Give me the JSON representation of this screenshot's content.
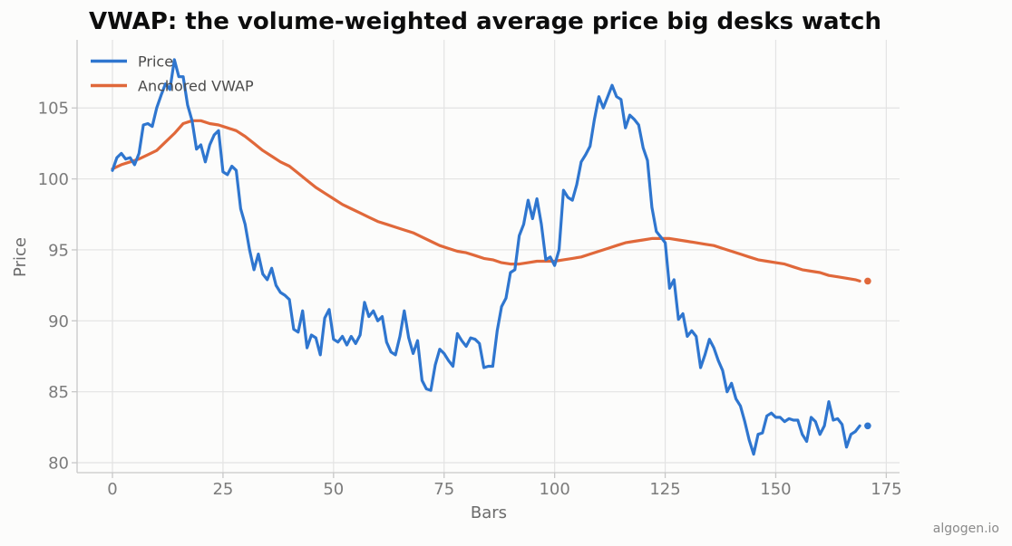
{
  "chart_data": {
    "type": "line",
    "title": "VWAP: the volume-weighted average price big desks watch",
    "xlabel": "Bars",
    "ylabel": "Price",
    "xlim": [
      -8,
      178
    ],
    "ylim": [
      79.3,
      109.8
    ],
    "xticks": [
      0,
      25,
      50,
      75,
      100,
      125,
      150,
      175
    ],
    "yticks": [
      80,
      85,
      90,
      95,
      100,
      105
    ],
    "grid": true,
    "legend_position": "top-left",
    "watermark": "algogen.io",
    "series": [
      {
        "name": "Price",
        "color": "#2f76cf",
        "end_marker": true,
        "points": [
          [
            0,
            100.6
          ],
          [
            1,
            101.5
          ],
          [
            2,
            101.8
          ],
          [
            3,
            101.4
          ],
          [
            4,
            101.5
          ],
          [
            5,
            101.0
          ],
          [
            6,
            101.8
          ],
          [
            7,
            103.8
          ],
          [
            8,
            103.9
          ],
          [
            9,
            103.7
          ],
          [
            10,
            105.0
          ],
          [
            11,
            105.9
          ],
          [
            12,
            106.7
          ],
          [
            13,
            106.3
          ],
          [
            14,
            108.4
          ],
          [
            15,
            107.2
          ],
          [
            16,
            107.2
          ],
          [
            17,
            105.2
          ],
          [
            18,
            104.1
          ],
          [
            19,
            102.1
          ],
          [
            20,
            102.4
          ],
          [
            21,
            101.2
          ],
          [
            22,
            102.4
          ],
          [
            23,
            103.1
          ],
          [
            24,
            103.4
          ],
          [
            25,
            100.5
          ],
          [
            26,
            100.3
          ],
          [
            27,
            100.9
          ],
          [
            28,
            100.6
          ],
          [
            29,
            97.9
          ],
          [
            30,
            96.8
          ],
          [
            31,
            95.0
          ],
          [
            32,
            93.6
          ],
          [
            33,
            94.7
          ],
          [
            34,
            93.3
          ],
          [
            35,
            92.9
          ],
          [
            36,
            93.7
          ],
          [
            37,
            92.5
          ],
          [
            38,
            92.0
          ],
          [
            39,
            91.8
          ],
          [
            40,
            91.5
          ],
          [
            41,
            89.4
          ],
          [
            42,
            89.2
          ],
          [
            43,
            90.7
          ],
          [
            44,
            88.1
          ],
          [
            45,
            89.0
          ],
          [
            46,
            88.8
          ],
          [
            47,
            87.6
          ],
          [
            48,
            90.2
          ],
          [
            49,
            90.8
          ],
          [
            50,
            88.7
          ],
          [
            51,
            88.5
          ],
          [
            52,
            88.9
          ],
          [
            53,
            88.3
          ],
          [
            54,
            88.9
          ],
          [
            55,
            88.4
          ],
          [
            56,
            89.0
          ],
          [
            57,
            91.3
          ],
          [
            58,
            90.3
          ],
          [
            59,
            90.7
          ],
          [
            60,
            90.0
          ],
          [
            61,
            90.3
          ],
          [
            62,
            88.5
          ],
          [
            63,
            87.8
          ],
          [
            64,
            87.6
          ],
          [
            65,
            88.9
          ],
          [
            66,
            90.7
          ],
          [
            67,
            88.8
          ],
          [
            68,
            87.7
          ],
          [
            69,
            88.6
          ],
          [
            70,
            85.8
          ],
          [
            71,
            85.2
          ],
          [
            72,
            85.1
          ],
          [
            73,
            86.9
          ],
          [
            74,
            88.0
          ],
          [
            75,
            87.7
          ],
          [
            76,
            87.2
          ],
          [
            77,
            86.8
          ],
          [
            78,
            89.1
          ],
          [
            79,
            88.6
          ],
          [
            80,
            88.2
          ],
          [
            81,
            88.8
          ],
          [
            82,
            88.7
          ],
          [
            83,
            88.4
          ],
          [
            84,
            86.7
          ],
          [
            85,
            86.8
          ],
          [
            86,
            86.8
          ],
          [
            87,
            89.3
          ],
          [
            88,
            91.0
          ],
          [
            89,
            91.6
          ],
          [
            90,
            93.4
          ],
          [
            91,
            93.6
          ],
          [
            92,
            96.0
          ],
          [
            93,
            96.8
          ],
          [
            94,
            98.5
          ],
          [
            95,
            97.2
          ],
          [
            96,
            98.6
          ],
          [
            97,
            96.8
          ],
          [
            98,
            94.3
          ],
          [
            99,
            94.5
          ],
          [
            100,
            93.9
          ],
          [
            101,
            95.0
          ],
          [
            102,
            99.2
          ],
          [
            103,
            98.7
          ],
          [
            104,
            98.5
          ],
          [
            105,
            99.6
          ],
          [
            106,
            101.2
          ],
          [
            107,
            101.7
          ],
          [
            108,
            102.3
          ],
          [
            109,
            104.2
          ],
          [
            110,
            105.8
          ],
          [
            111,
            105.0
          ],
          [
            112,
            105.8
          ],
          [
            113,
            106.6
          ],
          [
            114,
            105.8
          ],
          [
            115,
            105.6
          ],
          [
            116,
            103.6
          ],
          [
            117,
            104.5
          ],
          [
            118,
            104.2
          ],
          [
            119,
            103.8
          ],
          [
            120,
            102.2
          ],
          [
            121,
            101.3
          ],
          [
            122,
            98.0
          ],
          [
            123,
            96.3
          ],
          [
            124,
            95.9
          ],
          [
            125,
            95.5
          ],
          [
            126,
            92.3
          ],
          [
            127,
            92.9
          ],
          [
            128,
            90.1
          ],
          [
            129,
            90.5
          ],
          [
            130,
            88.9
          ],
          [
            131,
            89.3
          ],
          [
            132,
            88.9
          ],
          [
            133,
            86.7
          ],
          [
            134,
            87.6
          ],
          [
            135,
            88.7
          ],
          [
            136,
            88.1
          ],
          [
            137,
            87.2
          ],
          [
            138,
            86.5
          ],
          [
            139,
            85.0
          ],
          [
            140,
            85.6
          ],
          [
            141,
            84.5
          ],
          [
            142,
            84.0
          ],
          [
            143,
            82.9
          ],
          [
            144,
            81.6
          ],
          [
            145,
            80.6
          ],
          [
            146,
            82.0
          ],
          [
            147,
            82.1
          ],
          [
            148,
            83.3
          ],
          [
            149,
            83.5
          ],
          [
            150,
            83.2
          ],
          [
            151,
            83.2
          ],
          [
            152,
            82.9
          ],
          [
            153,
            83.1
          ],
          [
            154,
            83.0
          ],
          [
            155,
            83.0
          ],
          [
            156,
            82.0
          ],
          [
            157,
            81.5
          ],
          [
            158,
            83.2
          ],
          [
            159,
            82.9
          ],
          [
            160,
            82.0
          ],
          [
            161,
            82.6
          ],
          [
            162,
            84.3
          ],
          [
            163,
            83.0
          ],
          [
            164,
            83.1
          ],
          [
            165,
            82.7
          ],
          [
            166,
            81.1
          ],
          [
            167,
            82.0
          ],
          [
            168,
            82.2
          ],
          [
            169,
            82.6
          ]
        ]
      },
      {
        "name": "Anchored VWAP",
        "color": "#e0683a",
        "end_marker": true,
        "points": [
          [
            0,
            100.7
          ],
          [
            2,
            101.0
          ],
          [
            4,
            101.2
          ],
          [
            6,
            101.4
          ],
          [
            8,
            101.7
          ],
          [
            10,
            102.0
          ],
          [
            12,
            102.6
          ],
          [
            14,
            103.2
          ],
          [
            16,
            103.9
          ],
          [
            18,
            104.1
          ],
          [
            20,
            104.1
          ],
          [
            22,
            103.9
          ],
          [
            24,
            103.8
          ],
          [
            26,
            103.6
          ],
          [
            28,
            103.4
          ],
          [
            30,
            103.0
          ],
          [
            32,
            102.5
          ],
          [
            34,
            102.0
          ],
          [
            36,
            101.6
          ],
          [
            38,
            101.2
          ],
          [
            40,
            100.9
          ],
          [
            42,
            100.4
          ],
          [
            44,
            99.9
          ],
          [
            46,
            99.4
          ],
          [
            48,
            99.0
          ],
          [
            50,
            98.6
          ],
          [
            52,
            98.2
          ],
          [
            54,
            97.9
          ],
          [
            56,
            97.6
          ],
          [
            58,
            97.3
          ],
          [
            60,
            97.0
          ],
          [
            62,
            96.8
          ],
          [
            64,
            96.6
          ],
          [
            66,
            96.4
          ],
          [
            68,
            96.2
          ],
          [
            70,
            95.9
          ],
          [
            72,
            95.6
          ],
          [
            74,
            95.3
          ],
          [
            76,
            95.1
          ],
          [
            78,
            94.9
          ],
          [
            80,
            94.8
          ],
          [
            82,
            94.6
          ],
          [
            84,
            94.4
          ],
          [
            86,
            94.3
          ],
          [
            88,
            94.1
          ],
          [
            90,
            94.0
          ],
          [
            92,
            94.0
          ],
          [
            94,
            94.1
          ],
          [
            96,
            94.2
          ],
          [
            98,
            94.2
          ],
          [
            100,
            94.2
          ],
          [
            102,
            94.3
          ],
          [
            104,
            94.4
          ],
          [
            106,
            94.5
          ],
          [
            108,
            94.7
          ],
          [
            110,
            94.9
          ],
          [
            112,
            95.1
          ],
          [
            114,
            95.3
          ],
          [
            116,
            95.5
          ],
          [
            118,
            95.6
          ],
          [
            120,
            95.7
          ],
          [
            122,
            95.8
          ],
          [
            124,
            95.8
          ],
          [
            126,
            95.8
          ],
          [
            128,
            95.7
          ],
          [
            130,
            95.6
          ],
          [
            132,
            95.5
          ],
          [
            134,
            95.4
          ],
          [
            136,
            95.3
          ],
          [
            138,
            95.1
          ],
          [
            140,
            94.9
          ],
          [
            142,
            94.7
          ],
          [
            144,
            94.5
          ],
          [
            146,
            94.3
          ],
          [
            148,
            94.2
          ],
          [
            150,
            94.1
          ],
          [
            152,
            94.0
          ],
          [
            154,
            93.8
          ],
          [
            156,
            93.6
          ],
          [
            158,
            93.5
          ],
          [
            160,
            93.4
          ],
          [
            162,
            93.2
          ],
          [
            164,
            93.1
          ],
          [
            166,
            93.0
          ],
          [
            168,
            92.9
          ],
          [
            169,
            92.8
          ]
        ]
      }
    ]
  }
}
